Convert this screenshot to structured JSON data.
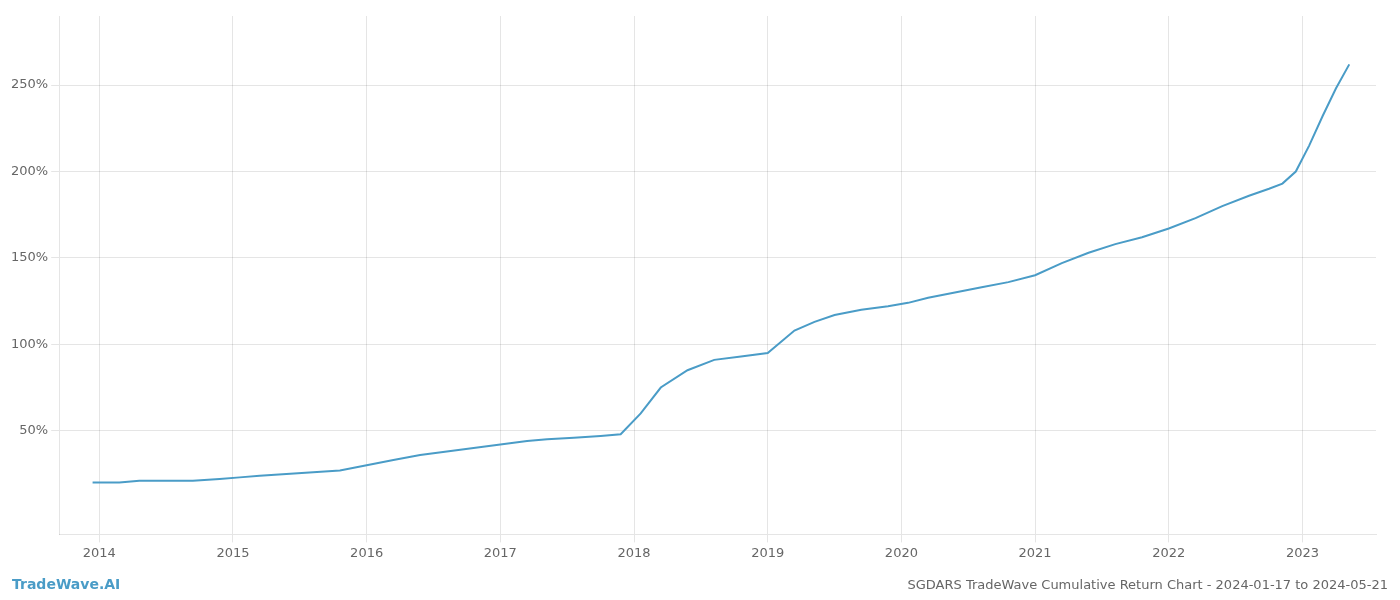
{
  "chart_data": {
    "type": "line",
    "title": "SGDARS TradeWave Cumulative Return Chart - 2024-01-17 to 2024-05-21",
    "annotations": [
      "TradeWave.AI"
    ],
    "color": "#4a9cc7",
    "x": [
      2013.95,
      2014.05,
      2014.15,
      2014.3,
      2014.5,
      2014.7,
      2014.9,
      2015.05,
      2015.2,
      2015.4,
      2015.6,
      2015.8,
      2016.0,
      2016.2,
      2016.4,
      2016.6,
      2016.8,
      2017.0,
      2017.1,
      2017.2,
      2017.35,
      2017.55,
      2017.75,
      2017.9,
      2018.05,
      2018.2,
      2018.4,
      2018.6,
      2018.8,
      2019.0,
      2019.2,
      2019.35,
      2019.5,
      2019.7,
      2019.9,
      2020.05,
      2020.2,
      2020.4,
      2020.6,
      2020.8,
      2021.0,
      2021.2,
      2021.4,
      2021.6,
      2021.8,
      2022.0,
      2022.2,
      2022.4,
      2022.6,
      2022.75,
      2022.85,
      2022.95,
      2023.05,
      2023.15,
      2023.25,
      2023.35
    ],
    "values": [
      20,
      20,
      20,
      21,
      21,
      21,
      22,
      23,
      24,
      25,
      26,
      27,
      30,
      33,
      36,
      38,
      40,
      42,
      43,
      44,
      45,
      46,
      47,
      48,
      60,
      75,
      85,
      91,
      93,
      95,
      108,
      113,
      117,
      120,
      122,
      124,
      127,
      130,
      133,
      136,
      140,
      147,
      153,
      158,
      162,
      167,
      173,
      180,
      186,
      190,
      193,
      200,
      215,
      232,
      248,
      262
    ],
    "xlim": [
      2013.7,
      2023.55
    ],
    "xticks": [
      2014,
      2015,
      2016,
      2017,
      2018,
      2019,
      2020,
      2021,
      2022,
      2023
    ],
    "ylim": [
      -10,
      290
    ],
    "yticks": [
      {
        "value": 50,
        "label": "50%"
      },
      {
        "value": 100,
        "label": "100%"
      },
      {
        "value": 150,
        "label": "150%"
      },
      {
        "value": 200,
        "label": "200%"
      },
      {
        "value": 250,
        "label": "250%"
      }
    ],
    "grid": true
  }
}
